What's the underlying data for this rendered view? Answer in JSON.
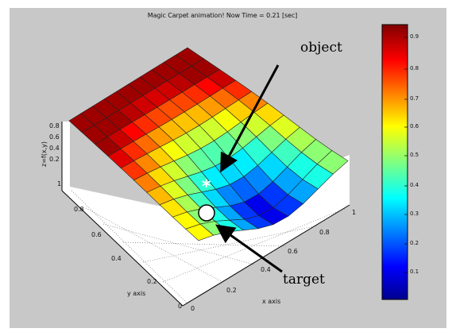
{
  "window": {
    "title": "Magic Carpet animation!   Now Time = 0.21 [sec]"
  },
  "axes": {
    "z_label": "z=f(x,y)",
    "y_label": "y axis",
    "x_label": "x axis",
    "z_ticks": [
      "0.8",
      "0.6",
      "0.4",
      "0.2"
    ],
    "y_ticks": [
      "1",
      "0.8",
      "0.6",
      "0.4",
      "0.2",
      "0"
    ],
    "x_ticks": [
      "0",
      "0.2",
      "0.4",
      "0.6",
      "0.8",
      "1"
    ]
  },
  "colorbar": {
    "ticks": [
      "0.9",
      "0.8",
      "0.7",
      "0.6",
      "0.5",
      "0.4",
      "0.3",
      "0.2",
      "0.1"
    ]
  },
  "annotations": {
    "object_label": "object",
    "object_marker": "*",
    "target_label": "target"
  },
  "colors": {
    "panel": "#c8c8c8",
    "arrow": "#000000",
    "surface_low": "#00008f",
    "surface_high": "#c80000"
  }
}
